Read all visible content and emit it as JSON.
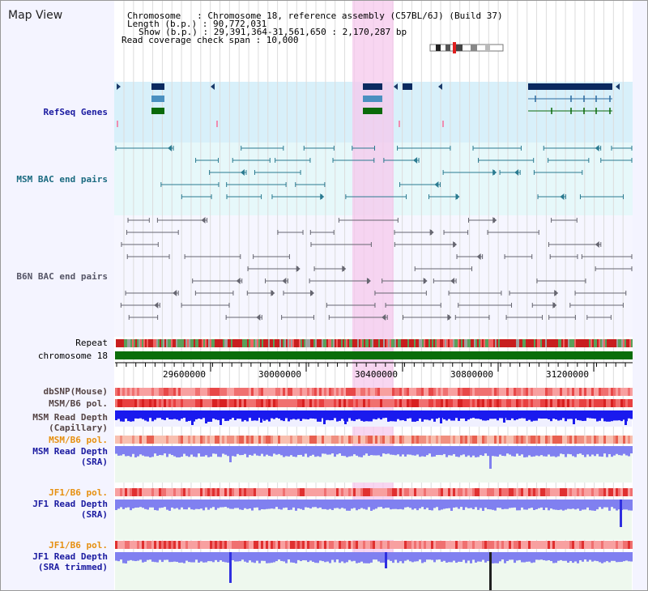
{
  "header": {
    "view_title": "Map View",
    "chromosome_label": "Chromosome   : Chromosome 18, reference assembly (C57BL/6J) (Build 37)",
    "length_label": "Length (b.p.) : 90,772,031",
    "show_label": "Show (b.p.) : 29,391,364-31,561,650 : 2,170,287 bp",
    "read_coverage_label": "Read coverage check span : 10,000"
  },
  "tracks": {
    "refseq": "RefSeq Genes",
    "msm_bac": "MSM BAC end pairs",
    "b6n_bac": "B6N BAC end pairs",
    "repeat": "Repeat",
    "chromosome": "chromosome 18",
    "dbsnp": "dbSNP(Mouse)",
    "msm_b6_pol_1": "MSM/B6 pol.",
    "msm_depth_cap_1": "MSM Read Depth",
    "msm_depth_cap_2": "(Capillary)",
    "msm_b6_pol_2": "MSM/B6 pol.",
    "msm_depth_sra_1": "MSM Read Depth",
    "msm_depth_sra_2": "(SRA)",
    "jf1_b6_pol_1": "JF1/B6 pol.",
    "jf1_depth_sra_1": "JF1 Read Depth",
    "jf1_depth_sra_2": "(SRA)",
    "jf1_b6_pol_2": "JF1/B6 pol.",
    "jf1_depth_trim_1": "JF1 Read Depth",
    "jf1_depth_trim_2": "(SRA trimmed)"
  },
  "axis": {
    "ticks": [
      "29600000",
      "30000000",
      "30400000",
      "30800000",
      "31200000"
    ]
  },
  "colors": {
    "refseq_bg": "#d8f0fa",
    "msm_bac_bg": "#e6f8fa",
    "b6n_bac_bg": "#f6f6ff",
    "highlight": "#f6c8ec",
    "label_blue": "#1a1aa0",
    "label_teal": "#1a6a80",
    "label_grey": "#555566",
    "label_orange": "#e69010",
    "label_brown": "#554444",
    "depth_blue": "#1a1aee",
    "depth_light": "#8080f0"
  }
}
